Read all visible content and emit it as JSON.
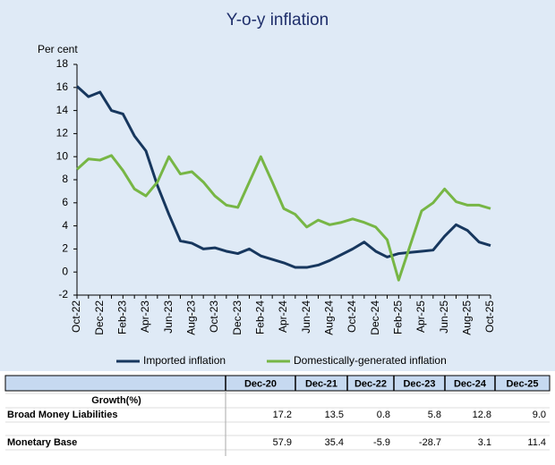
{
  "chart_data": {
    "type": "line",
    "title": "Y-o-y inflation",
    "y_label": "Per cent",
    "categories": [
      "Oct-22",
      null,
      "Dec-22",
      null,
      "Feb-23",
      null,
      "Apr-23",
      null,
      "Jun-23",
      null,
      "Aug-23",
      null,
      "Oct-23",
      null,
      "Dec-23",
      null,
      "Feb-24",
      null,
      "Apr-24",
      null,
      "Jun-24",
      null,
      "Aug-24",
      null,
      "Oct-24",
      null,
      "Dec-24",
      null,
      "Feb-25",
      null,
      "Apr-25",
      null,
      "Jun-25",
      null,
      "Aug-25",
      null,
      "Oct-25"
    ],
    "series": [
      {
        "name": "Imported inflation",
        "color": "#17375e",
        "values": [
          16.1,
          15.2,
          15.6,
          14.0,
          13.7,
          11.8,
          10.5,
          7.5,
          5.0,
          2.7,
          2.5,
          2.0,
          2.1,
          1.8,
          1.6,
          2.0,
          1.4,
          1.1,
          0.8,
          0.4,
          0.4,
          0.6,
          1.0,
          1.5,
          2.0,
          2.6,
          1.8,
          1.3,
          1.6,
          1.7,
          1.8,
          1.9,
          3.1,
          4.1,
          3.6,
          2.6,
          2.3
        ]
      },
      {
        "name": "Domestically-generated inflation",
        "color": "#77b645",
        "values": [
          8.9,
          9.8,
          9.7,
          10.1,
          8.8,
          7.2,
          6.6,
          7.8,
          10.0,
          8.5,
          8.7,
          7.8,
          6.6,
          5.8,
          5.6,
          7.8,
          10.0,
          7.8,
          5.5,
          5.0,
          3.9,
          4.5,
          4.1,
          4.3,
          4.6,
          4.3,
          3.9,
          2.8,
          -0.7,
          2.3,
          5.3,
          6.0,
          7.2,
          6.1,
          5.8,
          5.8,
          5.5
        ]
      }
    ],
    "ylim": [
      -2,
      18
    ],
    "yticks": [
      -2,
      0,
      2,
      4,
      6,
      8,
      10,
      12,
      14,
      16,
      18
    ],
    "grid": false,
    "legend": "bottom"
  },
  "table": {
    "header": [
      "Dec-20",
      "Dec-21",
      "Dec-22",
      "Dec-23",
      "Dec-24",
      "Dec-25"
    ],
    "group_label": "Growth(%)",
    "rows": [
      {
        "label": "Broad Money Liabilities",
        "cells": [
          "17.2",
          "13.5",
          "0.8",
          "5.8",
          "12.8",
          "9.0"
        ]
      },
      {
        "label": "Monetary Base",
        "cells": [
          "57.9",
          "35.4",
          "-5.9",
          "-28.7",
          "3.1",
          "11.4"
        ]
      }
    ]
  }
}
